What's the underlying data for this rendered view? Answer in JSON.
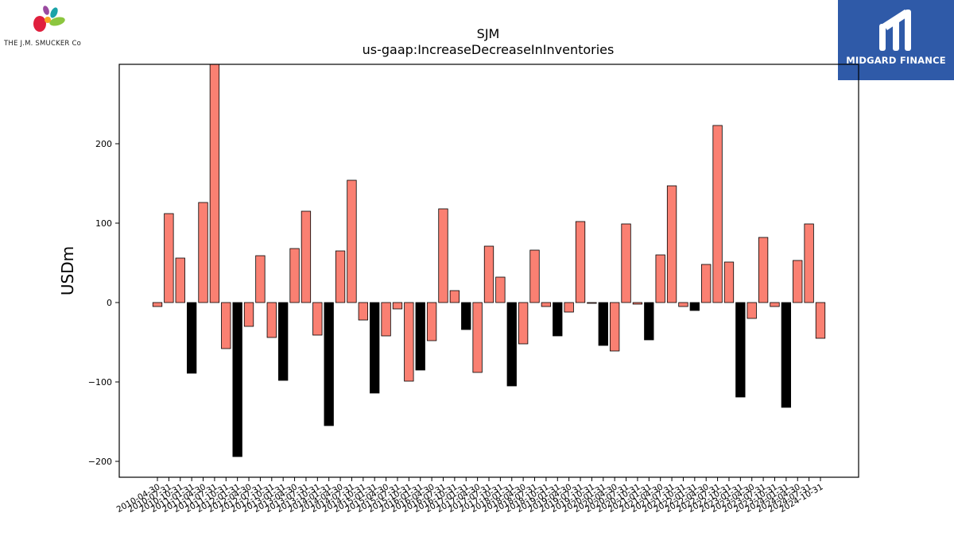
{
  "branding": {
    "company_logo_text": "THE J.M. SMUCKER Co",
    "brand_name": "MIDGARD FINANCE"
  },
  "chart_data": {
    "type": "bar",
    "title": "SJM",
    "subtitle": "us-gaap:IncreaseDecreaseInInventories",
    "xlabel": "",
    "ylabel": "USDm",
    "ylim": [
      -220,
      300
    ],
    "yticks": [
      -200,
      -100,
      0,
      100,
      200
    ],
    "grid": false,
    "legend": "none",
    "colors": {
      "positive_periods": "#fa8072",
      "annual_periods": "#000000",
      "edge": "#000000"
    },
    "categories": [
      "2010-04-30",
      "2010-07-31",
      "2010-10-31",
      "2011-01-31",
      "2011-04-30",
      "2011-07-31",
      "2011-10-31",
      "2012-01-31",
      "2012-04-30",
      "2012-07-31",
      "2012-10-31",
      "2013-01-31",
      "2013-04-30",
      "2013-07-31",
      "2013-10-31",
      "2014-01-31",
      "2014-04-30",
      "2014-07-31",
      "2014-10-31",
      "2015-01-31",
      "2015-04-30",
      "2015-07-31",
      "2015-10-31",
      "2016-01-31",
      "2016-04-30",
      "2016-07-31",
      "2016-10-31",
      "2017-01-31",
      "2017-04-30",
      "2017-07-31",
      "2017-10-31",
      "2018-01-31",
      "2018-04-30",
      "2018-07-31",
      "2018-10-31",
      "2019-01-31",
      "2019-04-30",
      "2019-07-31",
      "2019-10-31",
      "2020-01-31",
      "2020-04-30",
      "2020-07-31",
      "2020-10-31",
      "2021-01-31",
      "2021-04-30",
      "2021-07-31",
      "2021-10-31",
      "2022-01-31",
      "2022-04-30",
      "2022-07-31",
      "2022-10-31",
      "2023-01-31",
      "2023-04-30",
      "2023-07-31",
      "2023-10-31",
      "2024-01-31",
      "2024-04-30",
      "2024-07-31",
      "2024-10-31"
    ],
    "values": [
      -5,
      112,
      56,
      -89,
      126,
      300,
      -58,
      -194,
      -30,
      59,
      -44,
      -98,
      68,
      115,
      -41,
      -155,
      65,
      154,
      -22,
      -114,
      -42,
      -8,
      -99,
      -85,
      -48,
      118,
      15,
      -34,
      -88,
      71,
      32,
      -105,
      -52,
      66,
      -5,
      -42,
      -12,
      102,
      -1,
      -54,
      -61,
      99,
      -2,
      -47,
      60,
      147,
      -5,
      -10,
      48,
      223,
      51,
      -119,
      -20,
      82,
      -5,
      -132,
      53,
      99,
      -45
    ],
    "bar_colors": [
      "#fa8072",
      "#fa8072",
      "#fa8072",
      "#000000",
      "#fa8072",
      "#fa8072",
      "#fa8072",
      "#000000",
      "#fa8072",
      "#fa8072",
      "#fa8072",
      "#000000",
      "#fa8072",
      "#fa8072",
      "#fa8072",
      "#000000",
      "#fa8072",
      "#fa8072",
      "#fa8072",
      "#000000",
      "#fa8072",
      "#fa8072",
      "#fa8072",
      "#000000",
      "#fa8072",
      "#fa8072",
      "#fa8072",
      "#000000",
      "#fa8072",
      "#fa8072",
      "#fa8072",
      "#000000",
      "#fa8072",
      "#fa8072",
      "#fa8072",
      "#000000",
      "#fa8072",
      "#fa8072",
      "#fa8072",
      "#000000",
      "#fa8072",
      "#fa8072",
      "#fa8072",
      "#000000",
      "#fa8072",
      "#fa8072",
      "#fa8072",
      "#000000",
      "#fa8072",
      "#fa8072",
      "#fa8072",
      "#000000",
      "#fa8072",
      "#fa8072",
      "#fa8072",
      "#000000",
      "#fa8072",
      "#fa8072",
      "#fa8072"
    ]
  }
}
